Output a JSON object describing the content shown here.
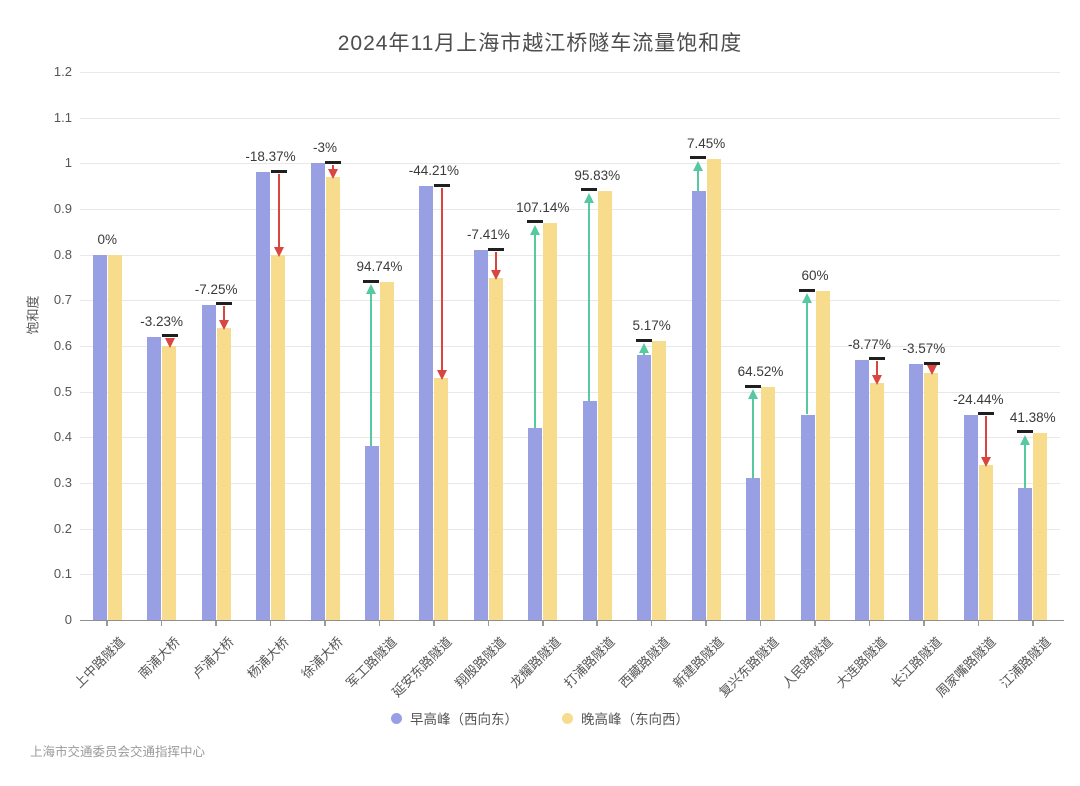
{
  "footer": {
    "source": "上海市交通委员会交通指挥中心"
  },
  "chart_data": {
    "type": "bar",
    "title": "2024年11月上海市越江桥隧车流量饱和度",
    "xlabel": "",
    "ylabel": "饱和度",
    "ylim": [
      0,
      1.2
    ],
    "ytick_step": 0.1,
    "grid": true,
    "legend_position": "bottom",
    "categories": [
      "上中路隧道",
      "南浦大桥",
      "卢浦大桥",
      "杨浦大桥",
      "徐浦大桥",
      "军工路隧道",
      "延安东路隧道",
      "翔殷路隧道",
      "龙耀路隧道",
      "打浦路隧道",
      "西藏路隧道",
      "新建路隧道",
      "复兴东路隧道",
      "人民路隧道",
      "大连路隧道",
      "长江路隧道",
      "周家嘴路隧道",
      "江浦路隧道"
    ],
    "series": [
      {
        "name": "早高峰（西向东）",
        "color": "#989FE3",
        "values": [
          0.8,
          0.62,
          0.69,
          0.98,
          1.0,
          0.38,
          0.95,
          0.81,
          0.42,
          0.48,
          0.58,
          0.94,
          0.31,
          0.45,
          0.57,
          0.56,
          0.45,
          0.29
        ]
      },
      {
        "name": "晚高峰（东向西）",
        "color": "#F7DC8E",
        "values": [
          0.8,
          0.6,
          0.64,
          0.8,
          0.97,
          0.74,
          0.53,
          0.75,
          0.87,
          0.94,
          0.61,
          1.01,
          0.51,
          0.72,
          0.52,
          0.54,
          0.34,
          0.41
        ]
      }
    ],
    "change_labels": [
      "0%",
      "-3.23%",
      "-7.25%",
      "-18.37%",
      "-3%",
      "94.74%",
      "-44.21%",
      "-7.41%",
      "107.14%",
      "95.83%",
      "5.17%",
      "7.45%",
      "64.52%",
      "60%",
      "-8.77%",
      "-3.57%",
      "-24.44%",
      "41.38%"
    ],
    "annotation_colors": {
      "increase": "#57C9A1",
      "decrease": "#D9453F",
      "cap": "#1F1F1F"
    }
  }
}
